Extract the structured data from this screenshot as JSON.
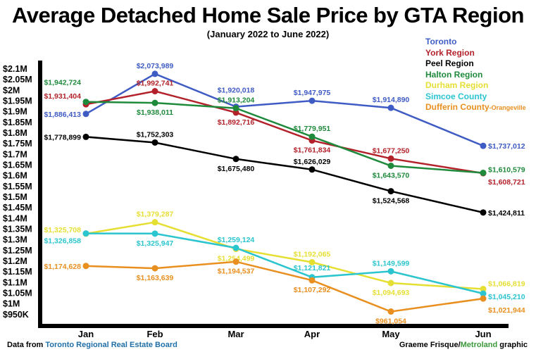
{
  "chart_data": {
    "type": "line",
    "title": "Average Detached Home Sale Price by GTA Region",
    "subtitle": "(January 2022 to June 2022)",
    "categories": [
      "Jan",
      "Feb",
      "Mar",
      "Apr",
      "May",
      "Jun"
    ],
    "yticks": [
      "$2.1M",
      "$2.05M",
      "$2M",
      "$1.95M",
      "$1.9M",
      "$1.85M",
      "$1.8M",
      "$1.75M",
      "$1.7M",
      "$1.65M",
      "$1.6M",
      "$1.55M",
      "$1.5M",
      "$1.45M",
      "$1.4M",
      "$1.35M",
      "$1.3M",
      "$1.25M",
      "$1.2M",
      "$1.15M",
      "$1.1M",
      "$1.05M",
      "$1M",
      "$950K"
    ],
    "ylim": [
      950000,
      2100000
    ],
    "grid": false,
    "legend_position": "top-right",
    "series": [
      {
        "name": "Toronto",
        "color": "#3f5bc4",
        "values": [
          1886413,
          2073989,
          1920018,
          1947975,
          1914890,
          1737012
        ],
        "labels": [
          "$1,886,413",
          "$2,073,989",
          "$1,920,018",
          "$1,947,975",
          "$1,914,890",
          "$1,737,012"
        ]
      },
      {
        "name": "York Region",
        "color": "#b3222a",
        "values": [
          1931404,
          1992741,
          1892716,
          1761834,
          1677250,
          1608721
        ],
        "labels": [
          "$1,931,404",
          "$1,992,741",
          "$1,892,716",
          "$1,761,834",
          "$1,677,250",
          "$1,608,721"
        ]
      },
      {
        "name": "Peel Region",
        "color": "#000000",
        "values": [
          1778899,
          1752303,
          1675480,
          1626029,
          1524568,
          1424811
        ],
        "labels": [
          "$1,778,899",
          "$1,752,303",
          "$1,675,480",
          "$1,626,029",
          "$1,524,568",
          "$1,424,811"
        ]
      },
      {
        "name": "Halton Region",
        "color": "#1f8a3c",
        "values": [
          1942724,
          1938011,
          1913204,
          1779951,
          1643570,
          1610579
        ],
        "labels": [
          "$1,942,724",
          "$1,938,011",
          "$1,913,204",
          "$1,779,951",
          "$1,643,570",
          "$1,610,579"
        ]
      },
      {
        "name": "Durham Region",
        "color": "#e6df33",
        "values": [
          1325708,
          1379287,
          1254499,
          1192065,
          1094693,
          1066819
        ],
        "labels": [
          "$1,325,708",
          "$1,379,287",
          "$1,254,499",
          "$1,192,065",
          "$1,094,693",
          "$1,066,819"
        ]
      },
      {
        "name": "Simcoe County",
        "color": "#2bc5cf",
        "values": [
          1326858,
          1325947,
          1259124,
          1121821,
          1149599,
          1045210
        ],
        "labels": [
          "$1,326,858",
          "$1,325,947",
          "$1,259,124",
          "$1,121,821",
          "$1,149,599",
          "$1,045,210"
        ]
      },
      {
        "name": "Dufferin County-Orangeville",
        "color": "#e88f1f",
        "values": [
          1174628,
          1163639,
          1194537,
          1107292,
          961054,
          1021944
        ],
        "labels": [
          "$1,174,628",
          "$1,163,639",
          "$1,194,537",
          "$1,107,292",
          "$961,054",
          "$1,021,944"
        ]
      }
    ]
  },
  "legend": {
    "dufferin_main": "Dufferin County",
    "dufferin_sub": "-Orangeville"
  },
  "footer": {
    "source_prefix": "Data from ",
    "source_name": "Toronto Regional Real Estate Board",
    "source_color": "#1f6fa8",
    "credit_name": "Graeme Frisque/",
    "credit_org": "Metroland",
    "credit_org_color": "#3a9a3a",
    "credit_suffix": " graphic"
  }
}
